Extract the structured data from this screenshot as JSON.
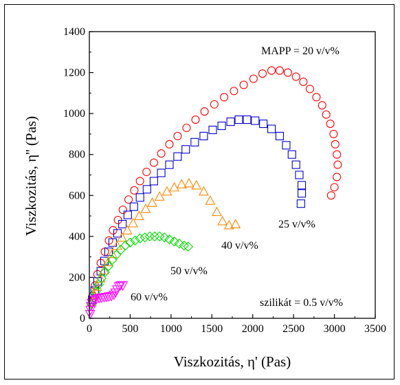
{
  "chart_data": {
    "type": "scatter",
    "title": "",
    "xlabel": "Viszkozitás, η' (Pas)",
    "ylabel": "Viszkozitás, η'' (Pas)",
    "xlim": [
      0,
      3500
    ],
    "ylim": [
      0,
      1400
    ],
    "xticks": [
      "0",
      "500",
      "1000",
      "1500",
      "2000",
      "2500",
      "3000",
      "3500"
    ],
    "yticks": [
      "0",
      "200",
      "400",
      "600",
      "800",
      "1000",
      "1200",
      "1400"
    ],
    "grid": false,
    "annotations": {
      "top": "MAPP = 20 v/v%",
      "bottom": "szilikát = 0.5 v/v%"
    },
    "series": [
      {
        "label": "",
        "marker": "circle",
        "color": "#ff0000",
        "points": [
          [
            40,
            110
          ],
          [
            70,
            160
          ],
          [
            100,
            215
          ],
          [
            140,
            270
          ],
          [
            190,
            325
          ],
          [
            240,
            380
          ],
          [
            290,
            430
          ],
          [
            350,
            480
          ],
          [
            410,
            530
          ],
          [
            480,
            580
          ],
          [
            550,
            625
          ],
          [
            620,
            670
          ],
          [
            700,
            715
          ],
          [
            790,
            760
          ],
          [
            880,
            805
          ],
          [
            980,
            850
          ],
          [
            1080,
            890
          ],
          [
            1190,
            930
          ],
          [
            1300,
            970
          ],
          [
            1410,
            1010
          ],
          [
            1530,
            1045
          ],
          [
            1650,
            1080
          ],
          [
            1770,
            1110
          ],
          [
            1890,
            1140
          ],
          [
            2010,
            1170
          ],
          [
            2120,
            1195
          ],
          [
            2230,
            1210
          ],
          [
            2330,
            1210
          ],
          [
            2430,
            1200
          ],
          [
            2530,
            1180
          ],
          [
            2620,
            1155
          ],
          [
            2700,
            1120
          ],
          [
            2780,
            1080
          ],
          [
            2850,
            1040
          ],
          [
            2900,
            995
          ],
          [
            2950,
            950
          ],
          [
            2990,
            900
          ],
          [
            3010,
            850
          ],
          [
            3030,
            800
          ],
          [
            3040,
            750
          ],
          [
            3030,
            690
          ],
          [
            3000,
            640
          ],
          [
            2960,
            600
          ]
        ]
      },
      {
        "label": "25 v/v%",
        "marker": "square",
        "color": "#0000cc",
        "points": [
          [
            35,
            90
          ],
          [
            65,
            135
          ],
          [
            100,
            180
          ],
          [
            140,
            230
          ],
          [
            185,
            280
          ],
          [
            235,
            325
          ],
          [
            285,
            370
          ],
          [
            345,
            415
          ],
          [
            405,
            460
          ],
          [
            470,
            505
          ],
          [
            545,
            545
          ],
          [
            620,
            590
          ],
          [
            705,
            630
          ],
          [
            790,
            670
          ],
          [
            880,
            710
          ],
          [
            980,
            750
          ],
          [
            1080,
            790
          ],
          [
            1180,
            825
          ],
          [
            1290,
            860
          ],
          [
            1400,
            890
          ],
          [
            1510,
            920
          ],
          [
            1620,
            940
          ],
          [
            1730,
            960
          ],
          [
            1830,
            970
          ],
          [
            1930,
            970
          ],
          [
            2030,
            965
          ],
          [
            2130,
            950
          ],
          [
            2230,
            925
          ],
          [
            2330,
            890
          ],
          [
            2410,
            845
          ],
          [
            2480,
            800
          ],
          [
            2530,
            750
          ],
          [
            2570,
            700
          ],
          [
            2600,
            650
          ],
          [
            2600,
            610
          ],
          [
            2590,
            560
          ]
        ]
      },
      {
        "label": "40 v/v%",
        "marker": "triangle",
        "color": "#ff8800",
        "points": [
          [
            30,
            80
          ],
          [
            60,
            115
          ],
          [
            95,
            155
          ],
          [
            135,
            195
          ],
          [
            180,
            235
          ],
          [
            230,
            275
          ],
          [
            280,
            315
          ],
          [
            340,
            355
          ],
          [
            400,
            395
          ],
          [
            465,
            430
          ],
          [
            535,
            465
          ],
          [
            610,
            500
          ],
          [
            690,
            535
          ],
          [
            770,
            565
          ],
          [
            860,
            595
          ],
          [
            950,
            620
          ],
          [
            1040,
            640
          ],
          [
            1130,
            655
          ],
          [
            1220,
            660
          ],
          [
            1310,
            650
          ],
          [
            1400,
            620
          ],
          [
            1480,
            575
          ],
          [
            1560,
            520
          ],
          [
            1630,
            475
          ],
          [
            1710,
            455
          ],
          [
            1790,
            460
          ]
        ]
      },
      {
        "label": "50 v/v%",
        "marker": "diamond",
        "color": "#00dd00",
        "points": [
          [
            25,
            70
          ],
          [
            50,
            100
          ],
          [
            80,
            130
          ],
          [
            115,
            165
          ],
          [
            150,
            195
          ],
          [
            190,
            225
          ],
          [
            235,
            255
          ],
          [
            280,
            285
          ],
          [
            330,
            310
          ],
          [
            385,
            335
          ],
          [
            440,
            355
          ],
          [
            500,
            370
          ],
          [
            560,
            380
          ],
          [
            620,
            390
          ],
          [
            680,
            395
          ],
          [
            740,
            400
          ],
          [
            800,
            400
          ],
          [
            860,
            400
          ],
          [
            920,
            395
          ],
          [
            980,
            385
          ],
          [
            1040,
            375
          ],
          [
            1100,
            365
          ],
          [
            1160,
            355
          ],
          [
            1210,
            350
          ]
        ]
      },
      {
        "label": "60 v/v%",
        "marker": "triangle-down",
        "color": "#ff00ff",
        "points": [
          [
            10,
            20
          ],
          [
            15,
            40
          ],
          [
            20,
            60
          ],
          [
            30,
            75
          ],
          [
            45,
            85
          ],
          [
            65,
            90
          ],
          [
            90,
            95
          ],
          [
            120,
            98
          ],
          [
            150,
            100
          ],
          [
            180,
            102
          ],
          [
            210,
            104
          ],
          [
            240,
            106
          ],
          [
            270,
            108
          ],
          [
            300,
            115
          ],
          [
            320,
            125
          ],
          [
            340,
            140
          ],
          [
            360,
            155
          ],
          [
            380,
            160
          ],
          [
            410,
            160
          ]
        ]
      }
    ]
  }
}
